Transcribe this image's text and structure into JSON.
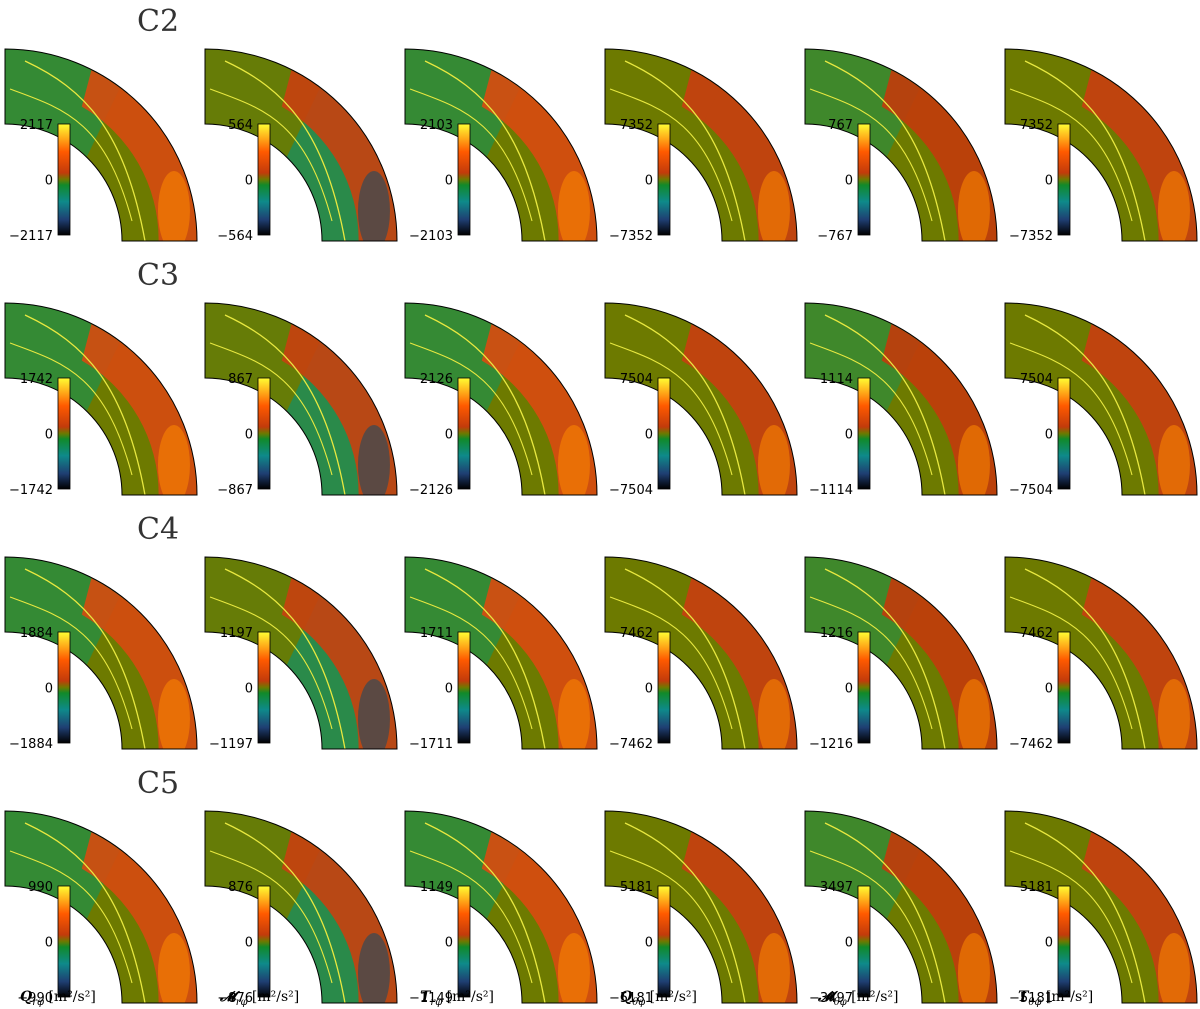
{
  "chart_data": {
    "type": "heatmap",
    "panel_shape": "quarter-annulus (meridional cut of a spherical shell)",
    "colormap": [
      "#000000",
      "#1f3f73",
      "#0e8a8a",
      "#118a2a",
      "#6d7a00",
      "#c23b0b",
      "#ff5a00",
      "#ffff33"
    ],
    "contour_color": "#e8e840",
    "columns": [
      {
        "label": "Q",
        "subscript": "rφ",
        "unit": "[m²/s²]"
      },
      {
        "label": "𝓜",
        "subscript": "rφ",
        "unit": "[m²/s²]"
      },
      {
        "label": "T",
        "subscript": "rφ",
        "unit": "[m²/s²]"
      },
      {
        "label": "Q",
        "subscript": "θφ",
        "unit": "[m²/s²]"
      },
      {
        "label": "𝓜",
        "subscript": "θφ",
        "unit": "[m²/s²]"
      },
      {
        "label": "T",
        "subscript": "θφ",
        "unit": "[m²/s²]"
      }
    ],
    "rows": [
      {
        "name": "C2",
        "ranges": [
          2117,
          564,
          2103,
          7352,
          767,
          7352
        ],
        "ticks": [
          [
            "2117",
            "0",
            "−2117"
          ],
          [
            "564",
            "0",
            "−564"
          ],
          [
            "2103",
            "0",
            "−2103"
          ],
          [
            "7352",
            "0",
            "−7352"
          ],
          [
            "767",
            "0",
            "−767"
          ],
          [
            "7352",
            "0",
            "−7352"
          ]
        ]
      },
      {
        "name": "C3",
        "ranges": [
          1742,
          867,
          2126,
          7504,
          1114,
          7504
        ],
        "ticks": [
          [
            "1742",
            "0",
            "−1742"
          ],
          [
            "867",
            "0",
            "−867"
          ],
          [
            "2126",
            "0",
            "−2126"
          ],
          [
            "7504",
            "0",
            "−7504"
          ],
          [
            "1114",
            "0",
            "−1114"
          ],
          [
            "7504",
            "0",
            "−7504"
          ]
        ]
      },
      {
        "name": "C4",
        "ranges": [
          1884,
          1197,
          1711,
          7462,
          1216,
          7462
        ],
        "ticks": [
          [
            "1884",
            "0",
            "−1884"
          ],
          [
            "1197",
            "0",
            "−1197"
          ],
          [
            "1711",
            "0",
            "−1711"
          ],
          [
            "7462",
            "0",
            "−7462"
          ],
          [
            "1216",
            "0",
            "−1216"
          ],
          [
            "7462",
            "0",
            "−7462"
          ]
        ]
      },
      {
        "name": "C5",
        "ranges": [
          990,
          876,
          1149,
          5181,
          3497,
          5181
        ],
        "ticks": [
          [
            "990",
            "0",
            "−990"
          ],
          [
            "876",
            "0",
            "−876"
          ],
          [
            "1149",
            "0",
            "−1149"
          ],
          [
            "5181",
            "0",
            "−5181"
          ],
          [
            "3497",
            "0",
            "−3497"
          ],
          [
            "5181",
            "0",
            "−5181"
          ]
        ]
      }
    ]
  }
}
